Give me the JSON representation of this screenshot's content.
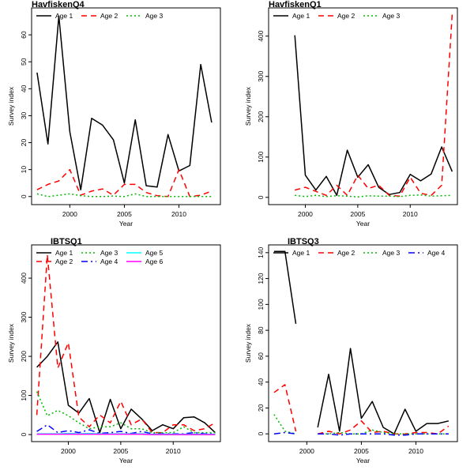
{
  "chart_data": [
    {
      "type": "line",
      "title": "HavfiskenQ4",
      "xlabel": "Year",
      "ylabel": "Survey index",
      "xlim": [
        1996.5,
        2013.8
      ],
      "ylim": [
        -3,
        70
      ],
      "x_ticks": [
        2000,
        2005,
        2010
      ],
      "y_ticks": [
        0,
        10,
        20,
        30,
        40,
        50,
        60
      ],
      "legend_position": "top",
      "legend_rows": [
        [
          "Age 1",
          "Age 2",
          "Age 3"
        ]
      ],
      "series": [
        {
          "name": "Age 1",
          "color": "#000000",
          "dash": "solid",
          "x": [
            1997,
            1998,
            1999,
            2000,
            2001,
            2002,
            2003,
            2004,
            2005,
            2006,
            2007,
            2008,
            2009,
            2010,
            2011,
            2012,
            2013
          ],
          "y": [
            46,
            19.5,
            67,
            24,
            2.5,
            29,
            26.5,
            21,
            5,
            28.5,
            4,
            3.5,
            23,
            9.5,
            11.5,
            49,
            27.5
          ]
        },
        {
          "name": "Age 2",
          "color": "#ff0000",
          "dash": "dashed",
          "x": [
            1997,
            1998,
            1999,
            2000,
            2001,
            2002,
            2003,
            2004,
            2005,
            2006,
            2007,
            2008,
            2009,
            2010,
            2011,
            2012,
            2013
          ],
          "y": [
            2.5,
            4.5,
            5.8,
            10,
            0.5,
            2,
            2.8,
            0.5,
            4.5,
            4.5,
            1.5,
            0.3,
            0,
            10,
            0,
            0.5,
            2
          ]
        },
        {
          "name": "Age 3",
          "color": "#00bb00",
          "dash": "dotted",
          "x": [
            1997,
            1998,
            1999,
            2000,
            2001,
            2002,
            2003,
            2004,
            2005,
            2006,
            2007,
            2008,
            2009,
            2010,
            2011,
            2012,
            2013
          ],
          "y": [
            1,
            0,
            0.5,
            1,
            0.3,
            0,
            0,
            0.2,
            0,
            1,
            0,
            0,
            0,
            0,
            0,
            0,
            0
          ]
        }
      ]
    },
    {
      "type": "line",
      "title": "HavfiskenQ1",
      "xlabel": "Year",
      "ylabel": "Survey index",
      "xlim": [
        1996.5,
        2014.5
      ],
      "ylim": [
        -18,
        470
      ],
      "x_ticks": [
        2000,
        2005,
        2010
      ],
      "y_ticks": [
        0,
        100,
        200,
        300,
        400
      ],
      "legend_position": "top",
      "legend_rows": [
        [
          "Age 1",
          "Age 2",
          "Age 3"
        ]
      ],
      "series": [
        {
          "name": "Age 1",
          "color": "#000000",
          "dash": "solid",
          "x": [
            1999,
            2000,
            2001,
            2002,
            2003,
            2004,
            2005,
            2006,
            2007,
            2008,
            2009,
            2010,
            2011,
            2012,
            2013,
            2014
          ],
          "y": [
            402,
            55,
            18,
            52,
            5,
            117,
            50,
            81,
            25,
            7,
            12,
            57,
            41,
            58,
            125,
            64
          ]
        },
        {
          "name": "Age 2",
          "color": "#ff0000",
          "dash": "dashed",
          "x": [
            1999,
            2000,
            2001,
            2002,
            2003,
            2004,
            2005,
            2006,
            2007,
            2008,
            2009,
            2010,
            2011,
            2012,
            2013,
            2014
          ],
          "y": [
            18,
            25,
            15,
            5,
            30,
            5,
            55,
            22,
            30,
            5,
            3,
            50,
            10,
            5,
            30,
            455
          ]
        },
        {
          "name": "Age 3",
          "color": "#00bb00",
          "dash": "dotted",
          "x": [
            1999,
            2000,
            2001,
            2002,
            2003,
            2004,
            2005,
            2006,
            2007,
            2008,
            2009,
            2010,
            2011,
            2012,
            2013,
            2014
          ],
          "y": [
            5,
            2,
            5,
            2,
            4,
            3,
            1,
            4,
            3,
            3,
            2,
            5,
            6,
            3,
            4,
            5
          ]
        }
      ]
    },
    {
      "type": "line",
      "title": "IBTSQ1",
      "xlabel": "Year",
      "ylabel": "Survey index",
      "xlim": [
        1996.5,
        2014.5
      ],
      "ylim": [
        -18,
        485
      ],
      "x_ticks": [
        2000,
        2005,
        2010
      ],
      "y_ticks": [
        0,
        100,
        200,
        300,
        400
      ],
      "legend_position": "top",
      "legend_rows": [
        [
          "Age 1",
          "Age 3",
          "Age 5"
        ],
        [
          "Age 2",
          "Age 4",
          "Age 6"
        ]
      ],
      "series": [
        {
          "name": "Age 1",
          "color": "#000000",
          "dash": "solid",
          "x": [
            1997,
            1998,
            1999,
            2000,
            2001,
            2002,
            2003,
            2004,
            2005,
            2006,
            2007,
            2008,
            2009,
            2010,
            2011,
            2012,
            2013,
            2014
          ],
          "y": [
            172,
            200,
            237,
            75,
            55,
            92,
            5,
            90,
            15,
            65,
            40,
            10,
            25,
            15,
            43,
            45,
            30,
            5
          ]
        },
        {
          "name": "Age 2",
          "color": "#ff0000",
          "dash": "dashed",
          "x": [
            1997,
            1998,
            1999,
            2000,
            2001,
            2002,
            2003,
            2004,
            2005,
            2006,
            2007,
            2008,
            2009,
            2010,
            2011,
            2012,
            2013,
            2014
          ],
          "y": [
            50,
            460,
            170,
            235,
            45,
            20,
            50,
            30,
            85,
            25,
            40,
            5,
            5,
            25,
            25,
            10,
            15,
            30
          ]
        },
        {
          "name": "Age 3",
          "color": "#00bb00",
          "dash": "dotted",
          "x": [
            1997,
            1998,
            1999,
            2000,
            2001,
            2002,
            2003,
            2004,
            2005,
            2006,
            2007,
            2008,
            2009,
            2010,
            2011,
            2012,
            2013,
            2014
          ],
          "y": [
            110,
            48,
            62,
            48,
            30,
            15,
            20,
            20,
            30,
            15,
            15,
            5,
            5,
            5,
            20,
            5,
            5,
            5
          ]
        },
        {
          "name": "Age 4",
          "color": "#0000ff",
          "dash": "dashdot",
          "x": [
            1997,
            1998,
            1999,
            2000,
            2001,
            2002,
            2003,
            2004,
            2005,
            2006,
            2007,
            2008,
            2009,
            2010,
            2011,
            2012,
            2013,
            2014
          ],
          "y": [
            8,
            25,
            5,
            10,
            5,
            12,
            3,
            5,
            8,
            3,
            8,
            2,
            2,
            2,
            2,
            5,
            2,
            2
          ]
        },
        {
          "name": "Age 5",
          "color": "#00ffff",
          "dash": "solid",
          "x": [
            1997,
            1998,
            1999,
            2000,
            2001,
            2002,
            2003,
            2004,
            2005,
            2006,
            2007,
            2008,
            2009,
            2010,
            2011,
            2012,
            2013,
            2014
          ],
          "y": [
            2,
            2,
            2,
            3,
            2,
            3,
            2,
            2,
            2,
            2,
            2,
            1,
            1,
            1,
            1,
            1,
            1,
            1
          ]
        },
        {
          "name": "Age 6",
          "color": "#ff00ff",
          "dash": "solid",
          "x": [
            1997,
            1998,
            1999,
            2000,
            2001,
            2002,
            2003,
            2004,
            2005,
            2006,
            2007,
            2008,
            2009,
            2010,
            2011,
            2012,
            2013,
            2014
          ],
          "y": [
            1,
            1,
            1,
            1,
            1,
            1,
            1,
            1,
            1,
            1,
            1,
            0,
            0,
            0,
            0,
            0,
            0,
            0
          ]
        }
      ]
    },
    {
      "type": "line",
      "title": "IBTSQ3",
      "xlabel": "Year",
      "ylabel": "Survey index",
      "xlim": [
        1996.5,
        2013.8
      ],
      "ylim": [
        -6,
        146
      ],
      "x_ticks": [
        2000,
        2005,
        2010
      ],
      "y_ticks": [
        0,
        20,
        40,
        60,
        80,
        100,
        120,
        140
      ],
      "legend_position": "top",
      "legend_rows": [
        [
          "Age 1",
          "Age 2",
          "Age 3",
          "Age 4"
        ]
      ],
      "series": [
        {
          "name": "Age 1",
          "color": "#000000",
          "dash": "solid",
          "x": [
            1997,
            1998,
            1999,
            null,
            2001,
            2002,
            2003,
            2004,
            2005,
            2006,
            2007,
            2008,
            2009,
            2010,
            2011,
            2012,
            2013
          ],
          "y": [
            141,
            141,
            85,
            null,
            5,
            46,
            2,
            66,
            12,
            25,
            5,
            0,
            19,
            2,
            8,
            8,
            10
          ]
        },
        {
          "name": "Age 2",
          "color": "#ff0000",
          "dash": "dashed",
          "x": [
            1997,
            1998,
            1999,
            null,
            2001,
            2002,
            2003,
            2004,
            2005,
            2006,
            2007,
            2008,
            2009,
            2010,
            2011,
            2012,
            2013
          ],
          "y": [
            32,
            38,
            2,
            null,
            0,
            2,
            0,
            3,
            10,
            1,
            2,
            0,
            0,
            1,
            1,
            0,
            6
          ]
        },
        {
          "name": "Age 3",
          "color": "#00bb00",
          "dash": "dotted",
          "x": [
            1997,
            1998,
            1999,
            null,
            2001,
            2002,
            2003,
            2004,
            2005,
            2006,
            2007,
            2008,
            2009,
            2010,
            2011,
            2012,
            2013
          ],
          "y": [
            15,
            2,
            0,
            null,
            0,
            0,
            1,
            0,
            0,
            3,
            1,
            0,
            0,
            0,
            0,
            0,
            0
          ]
        },
        {
          "name": "Age 4",
          "color": "#0000ff",
          "dash": "dashdot",
          "x": [
            1997,
            1998,
            1999,
            null,
            2001,
            2002,
            2003,
            2004,
            2005,
            2006,
            2007,
            2008,
            2009,
            2010,
            2011,
            2012,
            2013
          ],
          "y": [
            0,
            1,
            0,
            null,
            0,
            0,
            -1,
            0,
            0,
            0,
            0,
            -1,
            -1,
            0,
            0,
            0,
            0
          ]
        }
      ]
    }
  ]
}
